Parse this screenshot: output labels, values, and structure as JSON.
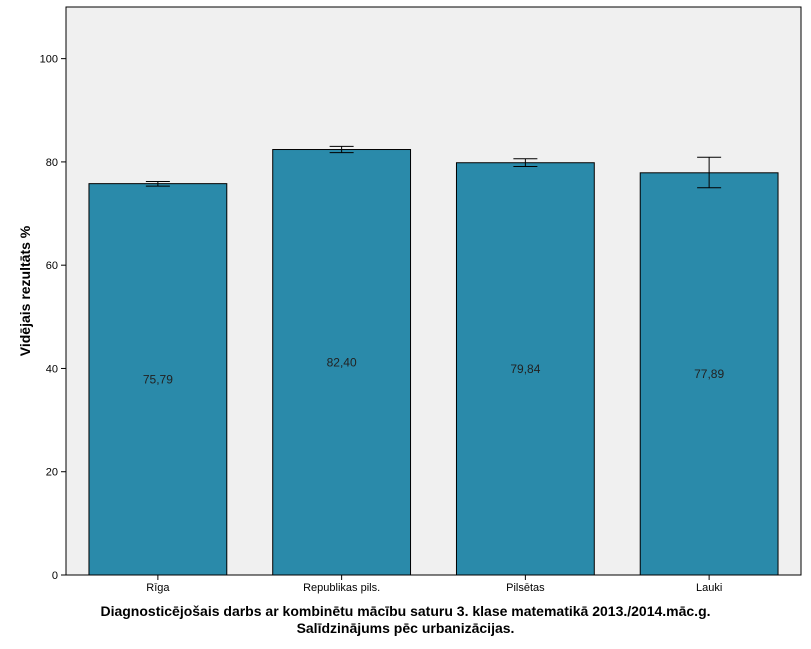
{
  "chart_data": {
    "type": "bar",
    "title": "Diagnosticējošais darbs ar kombinētu mācību saturu 3. klase matematikā 2013./2014.māc.g.",
    "subtitle": "Salīdzinājums pēc urbanizācijas.",
    "xlabel": "",
    "ylabel": "Vidējais rezultāts %",
    "categories": [
      "Rīga",
      "Republikas pils.",
      "Pilsētas",
      "Lauki"
    ],
    "values": [
      75.79,
      82.4,
      79.84,
      77.89
    ],
    "value_labels": [
      "75,79",
      "82,40",
      "79,84",
      "77,89"
    ],
    "error_bars": [
      {
        "low": 75.3,
        "high": 76.2
      },
      {
        "low": 81.8,
        "high": 83.0
      },
      {
        "low": 79.1,
        "high": 80.6
      },
      {
        "low": 75.0,
        "high": 80.9
      }
    ],
    "ylim": [
      0,
      110
    ],
    "yticks": [
      0,
      20,
      40,
      60,
      80,
      100
    ],
    "grid": false,
    "legend": "none",
    "colors": {
      "bar": "#2a8aaa",
      "plot_background": "#f0f0f0",
      "outline": "#000000"
    }
  }
}
